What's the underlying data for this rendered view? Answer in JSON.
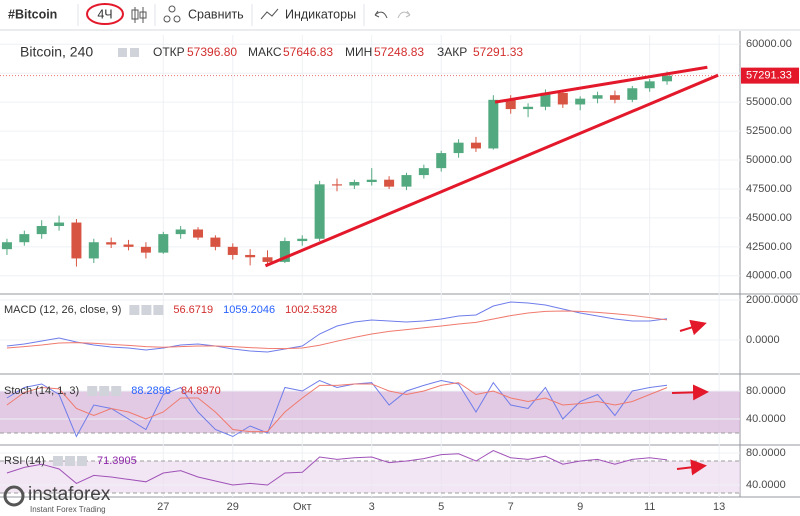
{
  "toolbar": {
    "symbol": "#Bitcoin",
    "interval": "4Ч",
    "compare": "Сравнить",
    "indicators": "Индикаторы"
  },
  "watermark": {
    "brand": "instaforex",
    "tagline": "Instant Forex Trading"
  },
  "chart_data": [
    {
      "type": "candlestick",
      "legend": "Bitcoin, 240",
      "ohlc": [
        {
          "label": "ОТКР",
          "value": "57396.80"
        },
        {
          "label": "МАКС",
          "value": "57646.83"
        },
        {
          "label": "МИН",
          "value": "57248.83"
        },
        {
          "label": "ЗАКР",
          "value": "57291.33"
        }
      ],
      "x": [
        22.5,
        23,
        23.5,
        24,
        24.5,
        25,
        25.5,
        26,
        26.5,
        27,
        27.5,
        28,
        28.5,
        29,
        29.5,
        30,
        30.5,
        31,
        31.5,
        32,
        32.5,
        33,
        33.5,
        34,
        34.5,
        35,
        35.5,
        36,
        36.5,
        37,
        37.5,
        38,
        38.5,
        39,
        39.5,
        40,
        40.5,
        41,
        41.5
      ],
      "open": [
        42300,
        42900,
        43600,
        44300,
        44600,
        41500,
        42900,
        42700,
        42500,
        42000,
        43600,
        44000,
        43300,
        42500,
        41800,
        41600,
        41200,
        43000,
        43200,
        47900,
        47800,
        48100,
        48300,
        47700,
        48700,
        49300,
        50600,
        51500,
        51000,
        55200,
        54400,
        54600,
        55800,
        54800,
        55300,
        55600,
        55200,
        56200,
        56800
      ],
      "high": [
        43200,
        43900,
        44800,
        45200,
        44900,
        43200,
        43300,
        43100,
        42900,
        43800,
        44300,
        44200,
        43500,
        42800,
        42300,
        42200,
        43300,
        43500,
        48200,
        48400,
        48300,
        49300,
        48600,
        48900,
        49600,
        50800,
        51800,
        52000,
        55600,
        55600,
        54900,
        56100,
        56000,
        55500,
        55900,
        56000,
        56400,
        57000,
        57646.83
      ],
      "low": [
        41800,
        42600,
        43200,
        43900,
        40800,
        41100,
        42400,
        42200,
        41500,
        41900,
        43200,
        43100,
        42200,
        41400,
        40900,
        41000,
        41100,
        42600,
        43000,
        47300,
        47500,
        47800,
        47500,
        47400,
        48400,
        49000,
        50200,
        50700,
        50900,
        54000,
        53700,
        54300,
        54500,
        54300,
        54900,
        54900,
        55000,
        55900,
        56500
      ],
      "close": [
        42900,
        43600,
        44300,
        44600,
        41500,
        42900,
        42700,
        42500,
        42000,
        43600,
        44000,
        43300,
        42500,
        41800,
        41600,
        41200,
        43000,
        43200,
        47900,
        47800,
        48100,
        48300,
        47700,
        48700,
        49300,
        50600,
        51500,
        51000,
        55200,
        54400,
        54600,
        55800,
        54800,
        55300,
        55600,
        55200,
        56200,
        56800,
        57291.33
      ],
      "up_color": "#53a97f",
      "down_color": "#d75442",
      "xlim": [
        22.3,
        43.6
      ],
      "xticks": [
        27,
        29,
        {
          "value": 31,
          "label": "Окт"
        },
        {
          "value": 33,
          "label": "3"
        },
        {
          "value": 35,
          "label": "5"
        },
        {
          "value": 37,
          "label": "7"
        },
        {
          "value": 39,
          "label": "9"
        },
        {
          "value": 41,
          "label": "11"
        },
        {
          "value": 43,
          "label": "13"
        }
      ],
      "ylim": [
        38600,
        60800
      ],
      "yticks": [
        {
          "value": 40000,
          "label": "40000.00"
        },
        {
          "value": 42500,
          "label": "42500.00"
        },
        {
          "value": 45000,
          "label": "45000.00"
        },
        {
          "value": 47500,
          "label": "47500.00"
        },
        {
          "value": 50000,
          "label": "50000.00"
        },
        {
          "value": 52500,
          "label": "52500.00"
        },
        {
          "value": 55000,
          "label": "55000.00"
        },
        {
          "value": 57500,
          "label": "57500.00"
        },
        {
          "value": 60000,
          "label": "60000.00"
        }
      ],
      "last_price": 57291.33,
      "last_price_label": "57291.33",
      "trendlines": [
        {
          "x": [
            29.94,
            42.97
          ],
          "y": [
            40862,
            57328
          ]
        },
        {
          "x": [
            36.55,
            42.66
          ],
          "y": [
            55000,
            58017
          ]
        }
      ],
      "trendline_color": "#e3192b",
      "grid": true
    },
    {
      "type": "line",
      "legend": "MACD (12, 26, close, 9)",
      "legend_values": [
        "56.6719",
        "1059.2046",
        "1002.5328"
      ],
      "legend_value_colors": [
        "#d32f2f",
        "#2962ff",
        "#d32f2f"
      ],
      "series": [
        {
          "name": "MACD",
          "color": "#6f7dea",
          "values": [
            -300,
            -200,
            -50,
            100,
            -100,
            -250,
            -350,
            -400,
            -500,
            -400,
            -250,
            -200,
            -300,
            -450,
            -550,
            -600,
            -450,
            -300,
            300,
            700,
            900,
            1000,
            950,
            900,
            950,
            1050,
            1200,
            1250,
            1700,
            1900,
            1850,
            1750,
            1550,
            1350,
            1200,
            1050,
            950,
            950,
            1059.2
          ]
        },
        {
          "name": "Signal",
          "color": "#f07a6e",
          "values": [
            -400,
            -330,
            -250,
            -150,
            -130,
            -160,
            -220,
            -270,
            -330,
            -360,
            -330,
            -300,
            -300,
            -330,
            -380,
            -420,
            -430,
            -400,
            -260,
            -60,
            130,
            300,
            430,
            520,
            610,
            700,
            800,
            880,
            1050,
            1220,
            1350,
            1430,
            1450,
            1430,
            1380,
            1310,
            1230,
            1120,
            1002.5
          ]
        }
      ],
      "ylim": [
        -1600,
        2200
      ],
      "yticks": [
        {
          "value": 2000,
          "label": "2000.0000"
        },
        {
          "value": 0,
          "label": "0.0000"
        }
      ]
    },
    {
      "type": "line",
      "legend": "Stoch (14, 1, 3)",
      "legend_values": [
        "88.2896",
        "84.8970"
      ],
      "legend_value_colors": [
        "#2962ff",
        "#d32f2f"
      ],
      "series": [
        {
          "name": "%K",
          "color": "#6f7dea",
          "values": [
            70,
            85,
            90,
            75,
            15,
            60,
            55,
            40,
            25,
            75,
            85,
            50,
            25,
            15,
            30,
            20,
            85,
            80,
            95,
            85,
            90,
            92,
            60,
            80,
            88,
            95,
            90,
            50,
            92,
            60,
            55,
            85,
            40,
            65,
            75,
            45,
            80,
            85,
            88.3
          ]
        },
        {
          "name": "%D",
          "color": "#f07a6e",
          "values": [
            60,
            78,
            85,
            83,
            55,
            45,
            55,
            50,
            40,
            50,
            70,
            70,
            50,
            25,
            22,
            22,
            50,
            70,
            88,
            88,
            90,
            90,
            80,
            75,
            80,
            88,
            92,
            75,
            80,
            70,
            65,
            70,
            60,
            62,
            65,
            60,
            65,
            75,
            84.9
          ]
        }
      ],
      "band": [
        20,
        80
      ],
      "band_color": "#d5b4d9",
      "ylim": [
        5.7,
        100
      ],
      "yticks": [
        {
          "value": 80,
          "label": "80.0000"
        },
        {
          "value": 40,
          "label": "40.0000"
        }
      ]
    },
    {
      "type": "line",
      "legend": "RSI (14)",
      "legend_values": [
        "71.3905"
      ],
      "legend_value_colors": [
        "#8e24aa"
      ],
      "series": [
        {
          "name": "RSI",
          "color": "#a052b8",
          "values": [
            55,
            62,
            66,
            60,
            42,
            52,
            50,
            47,
            44,
            55,
            58,
            50,
            45,
            40,
            42,
            40,
            55,
            56,
            75,
            72,
            74,
            75,
            68,
            70,
            73,
            78,
            79,
            70,
            83,
            74,
            72,
            76,
            66,
            70,
            72,
            66,
            72,
            74,
            71.39
          ]
        }
      ],
      "band": [
        30,
        70
      ],
      "band_color": "#ecdcef",
      "ylim": [
        27.5,
        87.5
      ],
      "yticks": [
        {
          "value": 80,
          "label": "80.0000"
        },
        {
          "value": 40,
          "label": "40.0000"
        }
      ]
    }
  ]
}
